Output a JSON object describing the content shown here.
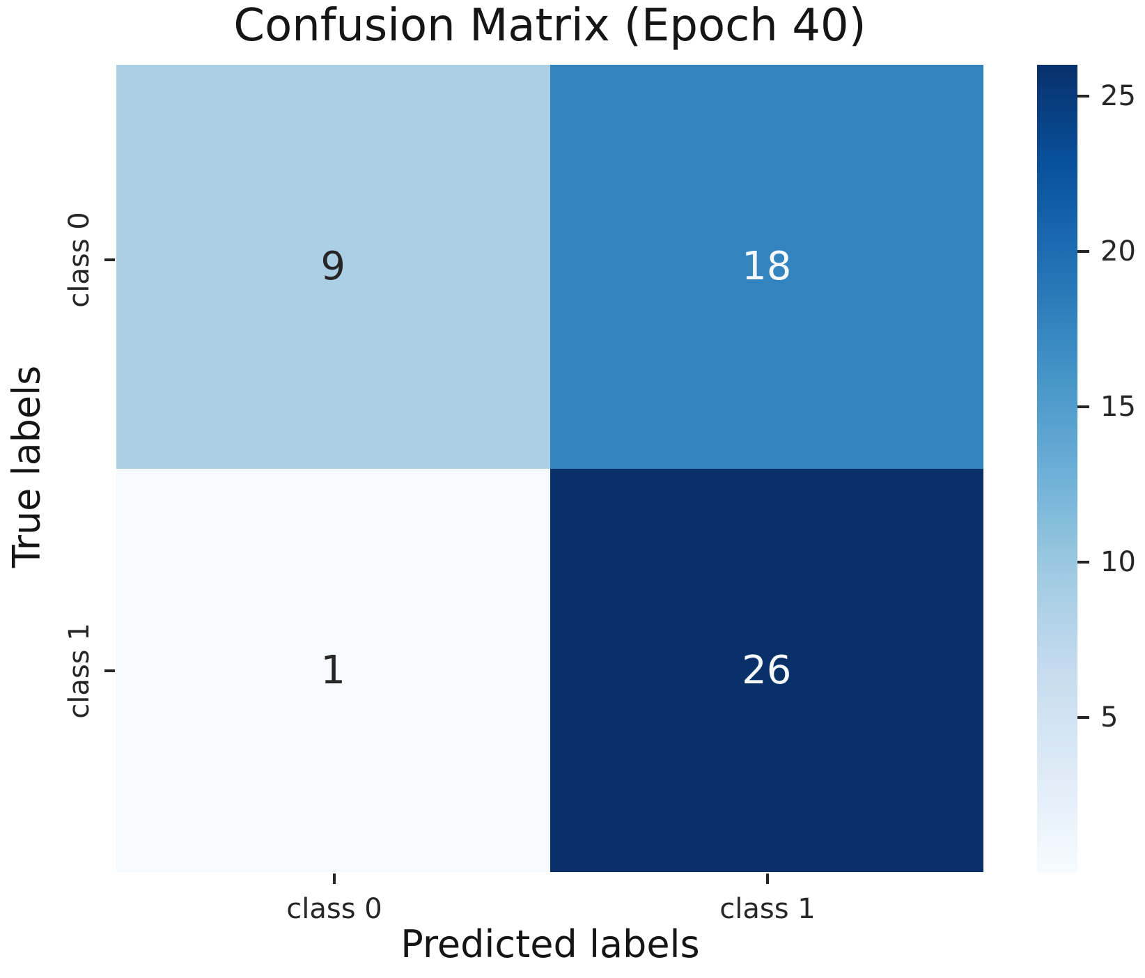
{
  "chart_data": {
    "type": "heatmap",
    "title": "Confusion Matrix (Epoch 40)",
    "xlabel": "Predicted labels",
    "ylabel": "True labels",
    "x_tick_labels": [
      "class 0",
      "class 1"
    ],
    "y_tick_labels": [
      "class 0",
      "class 1"
    ],
    "matrix": [
      [
        9,
        18
      ],
      [
        1,
        26
      ]
    ],
    "colormap": "Blues",
    "vmin": 0,
    "vmax": 26,
    "colorbar_ticks": [
      5,
      10,
      15,
      20,
      25
    ],
    "cells": [
      {
        "row": "class 0",
        "col": "class 0",
        "value": 9,
        "bg": "#abd0e6",
        "fg": "#262626"
      },
      {
        "row": "class 0",
        "col": "class 1",
        "value": 18,
        "bg": "#3383bf",
        "fg": "#f5f9fc"
      },
      {
        "row": "class 1",
        "col": "class 0",
        "value": 1,
        "bg": "#f6fafe",
        "fg": "#262626"
      },
      {
        "row": "class 1",
        "col": "class 1",
        "value": 26,
        "bg": "#0a3069",
        "fg": "#f5f9fc"
      }
    ],
    "colorbar_gradient": [
      "#f7fbff",
      "#deebf7",
      "#c6dbef",
      "#9ecae1",
      "#6baed6",
      "#4292c6",
      "#2171b5",
      "#08519c",
      "#08306b"
    ],
    "legend_position": "right-colorbar",
    "grid": false
  },
  "colors": {
    "background": "#ffffff",
    "text": "#151515",
    "tick_text": "#262626"
  }
}
